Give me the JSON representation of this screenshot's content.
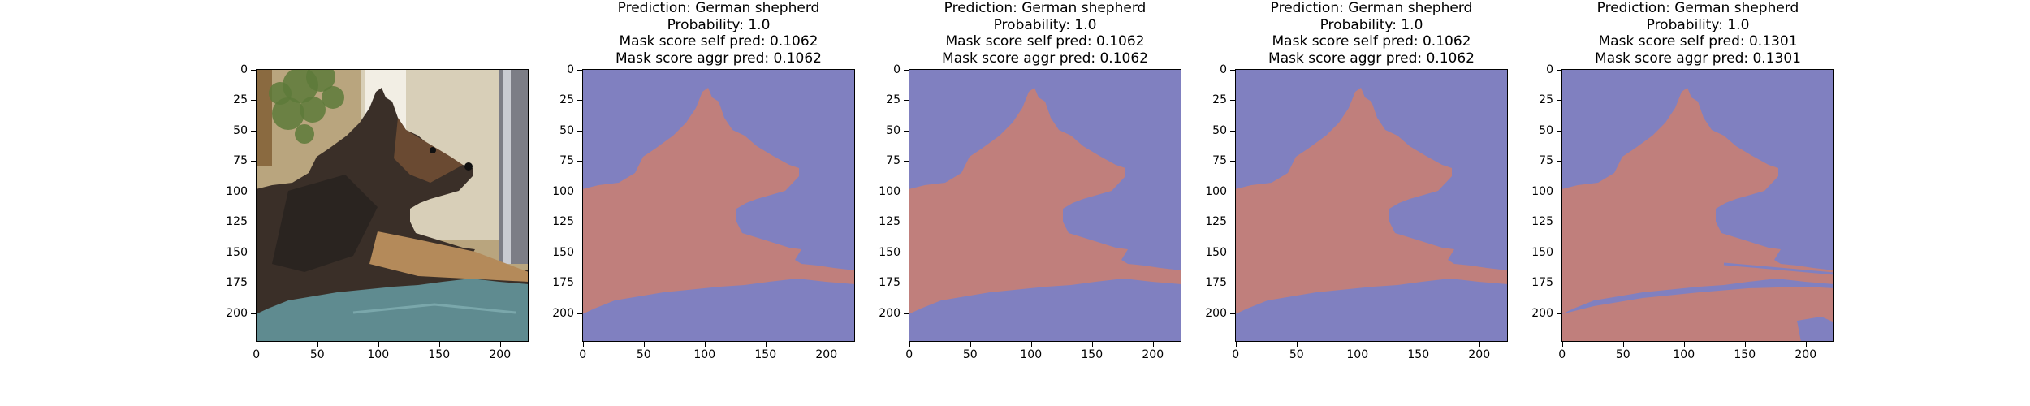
{
  "chart_data": [
    {
      "type": "image",
      "title": [],
      "image": "photo-german-shepherd",
      "xticks": [
        0,
        50,
        100,
        150,
        200
      ],
      "yticks": [
        0,
        25,
        50,
        75,
        100,
        125,
        150,
        175,
        200
      ],
      "xlim": [
        0,
        224
      ],
      "ylim": [
        224,
        0
      ]
    },
    {
      "type": "heatmap",
      "title": [
        "Prediction: German shepherd",
        "Probability: 1.0",
        "Mask score self pred: 0.1062",
        "Mask score aggr pred: 0.1062"
      ],
      "image": "segmentation-mask",
      "colors": {
        "background": "#8080c0",
        "foreground": "#c07f7c"
      },
      "xticks": [
        0,
        50,
        100,
        150,
        200
      ],
      "yticks": [
        0,
        25,
        50,
        75,
        100,
        125,
        150,
        175,
        200
      ],
      "xlim": [
        0,
        224
      ],
      "ylim": [
        224,
        0
      ]
    },
    {
      "type": "heatmap",
      "title": [
        "Prediction: German shepherd",
        "Probability: 1.0",
        "Mask score self pred: 0.1062",
        "Mask score aggr pred: 0.1062"
      ],
      "image": "segmentation-mask",
      "colors": {
        "background": "#8080c0",
        "foreground": "#c07f7c"
      },
      "xticks": [
        0,
        50,
        100,
        150,
        200
      ],
      "yticks": [
        0,
        25,
        50,
        75,
        100,
        125,
        150,
        175,
        200
      ],
      "xlim": [
        0,
        224
      ],
      "ylim": [
        224,
        0
      ]
    },
    {
      "type": "heatmap",
      "title": [
        "Prediction: German shepherd",
        "Probability: 1.0",
        "Mask score self pred: 0.1062",
        "Mask score aggr pred: 0.1062"
      ],
      "image": "segmentation-mask",
      "colors": {
        "background": "#8080c0",
        "foreground": "#c07f7c"
      },
      "xticks": [
        0,
        50,
        100,
        150,
        200
      ],
      "yticks": [
        0,
        25,
        50,
        75,
        100,
        125,
        150,
        175,
        200
      ],
      "xlim": [
        0,
        224
      ],
      "ylim": [
        224,
        0
      ]
    },
    {
      "type": "heatmap",
      "title": [
        "Prediction: German shepherd",
        "Probability: 1.0",
        "Mask score self pred: 0.1301",
        "Mask score aggr pred: 0.1301"
      ],
      "image": "segmentation-mask",
      "colors": {
        "background": "#8080c0",
        "foreground": "#c07f7c"
      },
      "xticks": [
        0,
        50,
        100,
        150,
        200
      ],
      "yticks": [
        0,
        25,
        50,
        75,
        100,
        125,
        150,
        175,
        200
      ],
      "xlim": [
        0,
        224
      ],
      "ylim": [
        224,
        0
      ]
    }
  ]
}
